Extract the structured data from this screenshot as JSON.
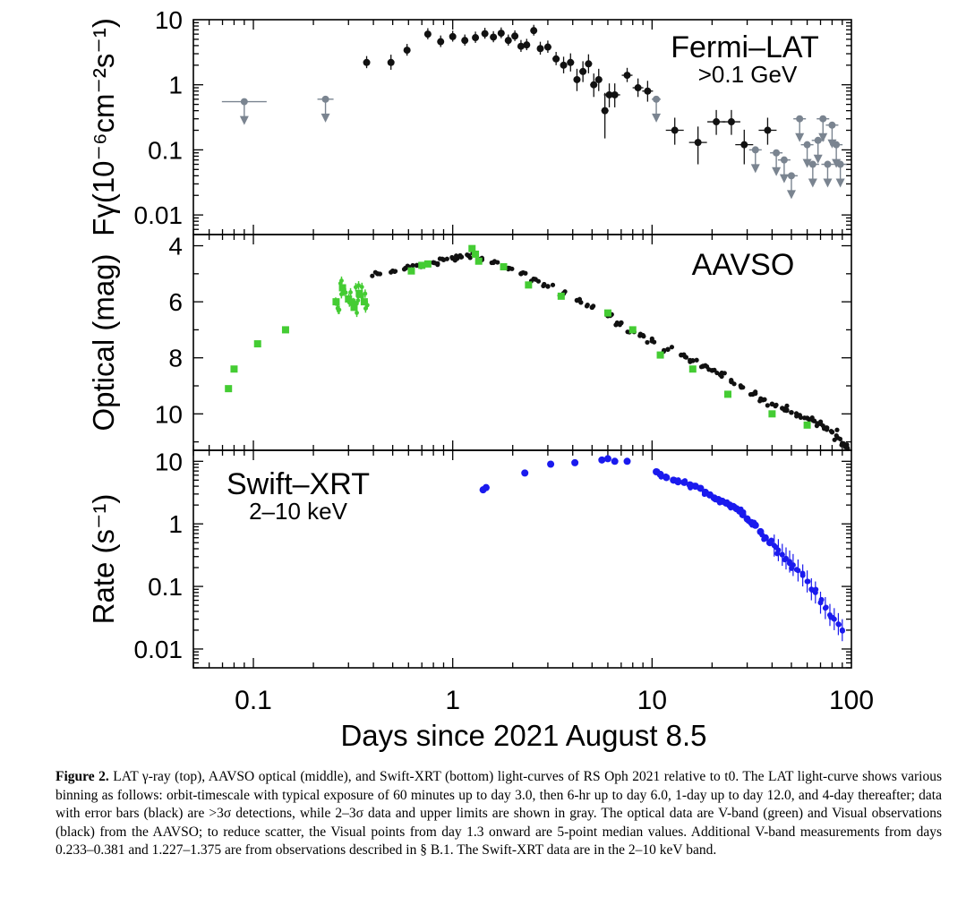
{
  "figure": {
    "x_axis": {
      "label": "Days since 2021 August 8.5",
      "scale": "log",
      "range": [
        0.05,
        100
      ],
      "ticks": [
        0.1,
        1,
        10,
        100
      ],
      "tick_labels": [
        "0.1",
        "1",
        "10",
        "100"
      ]
    },
    "caption": {
      "label": "Figure 2.",
      "text": "LAT γ-ray (top), AAVSO optical (middle), and Swift-XRT (bottom) light-curves of RS Oph 2021 relative to t0. The LAT light-curve shows various binning as follows: orbit-timescale with typical exposure of 60 minutes up to day 3.0, then 6-hr up to day 6.0, 1-day up to day 12.0, and 4-day thereafter; data with error bars (black) are >3σ detections, while 2–3σ data and upper limits are shown in gray. The optical data are V-band (green) and Visual observations (black) from the AAVSO; to reduce scatter, the Visual points from day 1.3 onward are 5-point median values. Additional V-band measurements from days 0.233–0.381 and 1.227–1.375 are from observations described in § B.1. The Swift-XRT data are in the 2–10 keV band."
    }
  },
  "chart_data": [
    {
      "type": "scatter",
      "panel": "top",
      "title": "Fermi–LAT",
      "subtitle": ">0.1 GeV",
      "ylabel": "Fγ(10⁻⁶cm⁻²s⁻¹)",
      "yscale": "log",
      "ylim": [
        0.005,
        10
      ],
      "yticks": [
        0.01,
        0.1,
        1,
        10
      ],
      "ytick_labels": [
        "0.01",
        "0.1",
        "1",
        "10"
      ],
      "colors": {
        "detection": "#111111",
        "upper_limit": "#7a8490"
      },
      "series": [
        {
          "name": "detections",
          "x": [
            0.37,
            0.49,
            0.59,
            0.75,
            0.87,
            1.0,
            1.15,
            1.3,
            1.45,
            1.6,
            1.75,
            1.9,
            2.05,
            2.2,
            2.35,
            2.55,
            2.75,
            3.0,
            3.3,
            3.6,
            3.9,
            4.2,
            4.5,
            4.8,
            5.1,
            5.4,
            5.8,
            6.1,
            6.5,
            7.5,
            8.5,
            9.5,
            13.0,
            17.0,
            21.0,
            25.0,
            29.0,
            38.0
          ],
          "y": [
            2.2,
            2.2,
            3.4,
            6.0,
            4.6,
            5.5,
            4.8,
            5.3,
            6.1,
            5.4,
            6.2,
            4.8,
            5.6,
            3.9,
            4.1,
            6.8,
            3.6,
            3.8,
            2.5,
            2.0,
            2.2,
            1.2,
            1.6,
            2.1,
            1.0,
            1.2,
            0.4,
            0.7,
            0.7,
            1.4,
            0.9,
            0.8,
            0.2,
            0.13,
            0.27,
            0.27,
            0.12,
            0.2
          ],
          "yerr": [
            0.4,
            0.5,
            0.6,
            1.0,
            0.8,
            0.9,
            0.8,
            0.9,
            1.0,
            0.9,
            1.0,
            0.8,
            0.9,
            0.7,
            0.7,
            1.1,
            0.7,
            0.7,
            0.5,
            0.5,
            0.6,
            0.4,
            0.5,
            0.6,
            0.35,
            0.4,
            0.25,
            0.25,
            0.25,
            0.3,
            0.25,
            0.25,
            0.08,
            0.07,
            0.1,
            0.1,
            0.06,
            0.08
          ]
        },
        {
          "name": "upper limits",
          "x": [
            0.09,
            0.23,
            10.5,
            33.0,
            42.0,
            46.0,
            50.0,
            55.0,
            60.0,
            64.0,
            68.0,
            72.0,
            76.0,
            80.0,
            84.0,
            88.0
          ],
          "y": [
            0.55,
            0.6,
            0.6,
            0.1,
            0.09,
            0.07,
            0.04,
            0.3,
            0.12,
            0.06,
            0.14,
            0.3,
            0.06,
            0.24,
            0.12,
            0.06
          ]
        }
      ]
    },
    {
      "type": "scatter",
      "panel": "middle",
      "title": "AAVSO",
      "ylabel": "Optical (mag)",
      "yscale": "linear",
      "yinverted": true,
      "ylim": [
        3.6,
        11.3
      ],
      "yticks": [
        4,
        6,
        8,
        10
      ],
      "ytick_labels": [
        "4",
        "6",
        "8",
        "10"
      ],
      "colors": {
        "V": "#44cc33",
        "Visual": "#111111"
      },
      "series": [
        {
          "name": "V-band",
          "x": [
            0.075,
            0.08,
            0.105,
            0.145,
            0.26,
            0.28,
            0.3,
            0.32,
            0.34,
            0.36,
            0.62,
            0.7,
            0.75,
            1.25,
            1.3,
            1.35,
            1.8,
            2.4,
            3.5,
            6.0,
            8.0,
            11.0,
            16.0,
            24.0,
            40.0,
            60.0
          ],
          "y": [
            9.1,
            8.4,
            7.5,
            7.0,
            6.0,
            5.5,
            5.9,
            6.2,
            5.7,
            6.0,
            4.9,
            4.7,
            4.65,
            4.1,
            4.3,
            4.55,
            4.75,
            5.4,
            5.8,
            6.4,
            7.0,
            7.9,
            8.4,
            9.3,
            10.0,
            10.4
          ]
        },
        {
          "name": "Visual",
          "x": [
            0.42,
            0.5,
            0.58,
            0.66,
            0.8,
            0.9,
            1.0,
            1.1,
            1.2,
            1.4,
            1.6,
            1.9,
            2.2,
            2.6,
            3.0,
            3.6,
            4.2,
            5.0,
            6.0,
            7.0,
            8.0,
            9.0,
            10.0,
            12.0,
            14.0,
            16.0,
            18.0,
            20.0,
            22.0,
            25.0,
            28.0,
            32.0,
            36.0,
            40.0,
            45.0,
            50.0,
            55.0,
            60.0,
            65.0,
            70.0,
            75.0,
            80.0,
            85.0,
            90.0,
            95.0
          ],
          "y": [
            5.0,
            4.9,
            4.8,
            4.7,
            4.6,
            4.5,
            4.45,
            4.4,
            4.35,
            4.5,
            4.6,
            4.8,
            5.0,
            5.2,
            5.45,
            5.7,
            5.95,
            6.2,
            6.5,
            6.75,
            7.0,
            7.2,
            7.4,
            7.7,
            7.9,
            8.1,
            8.3,
            8.45,
            8.6,
            8.85,
            9.05,
            9.3,
            9.5,
            9.65,
            9.8,
            9.95,
            10.05,
            10.15,
            10.25,
            10.35,
            10.5,
            10.65,
            10.85,
            11.05,
            11.2
          ]
        }
      ]
    },
    {
      "type": "scatter",
      "panel": "bottom",
      "title": "Swift–XRT",
      "subtitle": "2–10 keV",
      "ylabel": "Rate (s⁻¹)",
      "yscale": "log",
      "ylim": [
        0.005,
        15
      ],
      "yticks": [
        0.01,
        0.1,
        1,
        10
      ],
      "ytick_labels": [
        "0.01",
        "0.1",
        "1",
        "10"
      ],
      "colors": {
        "XRT": "#1a1aee"
      },
      "series": [
        {
          "name": "XRT",
          "x": [
            1.42,
            1.47,
            2.3,
            3.1,
            4.1,
            5.6,
            6.0,
            6.5,
            7.5,
            10.5,
            11.0,
            11.8,
            12.8,
            13.5,
            14.5,
            15.5,
            16.5,
            17.5,
            18.5,
            19.5,
            20.5,
            21.5,
            22.5,
            23.5,
            24.5,
            25.5,
            26.5,
            27.5,
            28.5,
            30.0,
            31.5,
            33.0,
            35.0,
            37.0,
            39.0,
            41.0,
            43.0,
            45.0,
            47.0,
            49.0,
            51.0,
            54.0,
            57.0,
            60.0,
            63.0,
            66.0,
            70.0,
            74.0,
            78.0,
            82.0,
            86.0,
            90.0
          ],
          "y": [
            3.5,
            3.8,
            6.5,
            9.0,
            9.5,
            10.5,
            11.0,
            10.0,
            10.0,
            6.8,
            6.2,
            5.5,
            5.0,
            4.7,
            4.6,
            4.2,
            4.0,
            3.7,
            3.2,
            2.9,
            2.6,
            2.45,
            2.3,
            2.15,
            2.0,
            1.9,
            1.75,
            1.6,
            1.4,
            1.2,
            1.05,
            0.95,
            0.75,
            0.6,
            0.5,
            0.45,
            0.38,
            0.32,
            0.28,
            0.25,
            0.22,
            0.18,
            0.15,
            0.12,
            0.09,
            0.08,
            0.055,
            0.045,
            0.035,
            0.03,
            0.025,
            0.02
          ]
        }
      ]
    }
  ]
}
